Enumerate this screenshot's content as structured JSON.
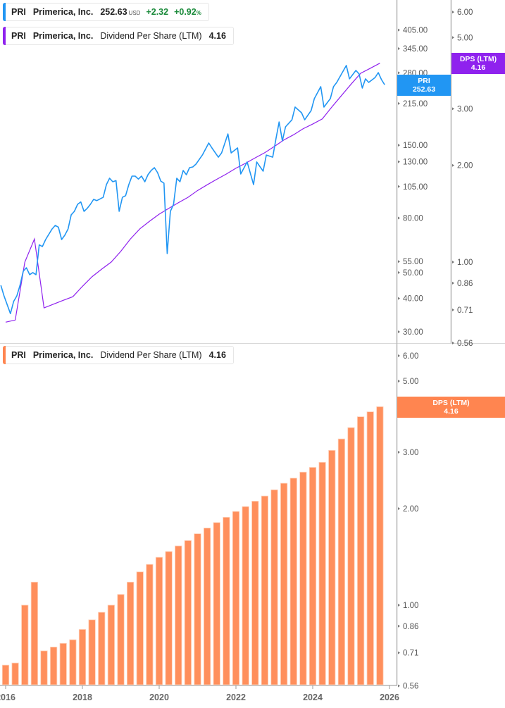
{
  "legends": {
    "price": {
      "ticker": "PRI",
      "name": "Primerica, Inc.",
      "value": "252.63",
      "unit": "USD",
      "change": "+2.32",
      "change_pct": "+0.92",
      "pct_sign": "%",
      "color": "#2196f3"
    },
    "dps_top": {
      "ticker": "PRI",
      "name": "Primerica, Inc.",
      "metric": "Dividend Per Share (LTM)",
      "value": "4.16",
      "color": "#8f22ee"
    },
    "dps_bottom": {
      "ticker": "PRI",
      "name": "Primerica, Inc.",
      "metric": "Dividend Per Share (LTM)",
      "value": "4.16",
      "color": "#ff8550"
    }
  },
  "tags": {
    "price": {
      "label": "PRI",
      "value": "252.63",
      "color": "#2196f3"
    },
    "dps_top": {
      "label": "DPS (LTM)",
      "value": "4.16",
      "color": "#8f22ee"
    },
    "dps_bottom": {
      "label": "DPS (LTM)",
      "value": "4.16",
      "color": "#ff8550"
    }
  },
  "chart_data": [
    {
      "type": "line",
      "y_scale": "log",
      "grid": false,
      "price_axis": {
        "ticks": [
          405,
          345,
          280,
          215,
          150,
          130,
          105,
          80,
          55,
          50,
          40,
          30
        ]
      },
      "dps_axis": {
        "ticks": [
          6.0,
          5.0,
          4.0,
          3.0,
          2.0,
          1.0,
          0.86,
          0.71,
          0.56
        ]
      },
      "series": [
        {
          "name": "PRI",
          "axis": "price",
          "color": "#2196f3",
          "points": [
            [
              "2015-11",
              44.8
            ],
            [
              "2015-12",
              40.9
            ],
            [
              "2016-02",
              35.1
            ],
            [
              "2016-03",
              39.0
            ],
            [
              "2016-04",
              40.9
            ],
            [
              "2016-05",
              44.8
            ],
            [
              "2016-06",
              50.6
            ],
            [
              "2016-07",
              52.1
            ],
            [
              "2016-08",
              49.1
            ],
            [
              "2016-09",
              50.0
            ],
            [
              "2016-10",
              49.1
            ],
            [
              "2016-11",
              63.5
            ],
            [
              "2016-12",
              62.6
            ],
            [
              "2017-01",
              66.5
            ],
            [
              "2017-03",
              72.8
            ],
            [
              "2017-04",
              75.1
            ],
            [
              "2017-05",
              74.0
            ],
            [
              "2017-06",
              66.5
            ],
            [
              "2017-07",
              69.0
            ],
            [
              "2017-08",
              72.8
            ],
            [
              "2017-09",
              82.3
            ],
            [
              "2017-10",
              84.8
            ],
            [
              "2017-11",
              90.1
            ],
            [
              "2017-12",
              92.0
            ],
            [
              "2018-01",
              84.8
            ],
            [
              "2018-02",
              87.0
            ],
            [
              "2018-03",
              90.1
            ],
            [
              "2018-04",
              94.0
            ],
            [
              "2018-05",
              93.0
            ],
            [
              "2018-07",
              95.7
            ],
            [
              "2018-08",
              106.8
            ],
            [
              "2018-09",
              112.8
            ],
            [
              "2018-10",
              109.4
            ],
            [
              "2018-11",
              110.5
            ],
            [
              "2018-12",
              84.8
            ],
            [
              "2019-01",
              95.7
            ],
            [
              "2019-02",
              97.0
            ],
            [
              "2019-03",
              106.8
            ],
            [
              "2019-04",
              114.9
            ],
            [
              "2019-05",
              114.9
            ],
            [
              "2019-06",
              112.0
            ],
            [
              "2019-07",
              114.9
            ],
            [
              "2019-08",
              109.4
            ],
            [
              "2019-09",
              116.3
            ],
            [
              "2019-10",
              120.6
            ],
            [
              "2019-11",
              123.6
            ],
            [
              "2019-12",
              118.4
            ],
            [
              "2020-01",
              110.0
            ],
            [
              "2020-02",
              108.1
            ],
            [
              "2020-03",
              58.9
            ],
            [
              "2020-04",
              84.8
            ],
            [
              "2020-05",
              90.1
            ],
            [
              "2020-06",
              112.8
            ],
            [
              "2020-07",
              109.4
            ],
            [
              "2020-08",
              120.6
            ],
            [
              "2020-09",
              116.3
            ],
            [
              "2020-10",
              123.6
            ],
            [
              "2020-11",
              124.3
            ],
            [
              "2020-12",
              127.4
            ],
            [
              "2021-02",
              137.8
            ],
            [
              "2021-04",
              152.8
            ],
            [
              "2021-05",
              146.5
            ],
            [
              "2021-07",
              135.3
            ],
            [
              "2021-08",
              140.3
            ],
            [
              "2021-10",
              165.3
            ],
            [
              "2021-11",
              140.3
            ],
            [
              "2022-01",
              146.5
            ],
            [
              "2022-02",
              117.0
            ],
            [
              "2022-04",
              129.8
            ],
            [
              "2022-06",
              106.8
            ],
            [
              "2022-07",
              129.8
            ],
            [
              "2022-09",
              119.9
            ],
            [
              "2022-10",
              137.8
            ],
            [
              "2022-12",
              135.3
            ],
            [
              "2023-01",
              158.5
            ],
            [
              "2023-02",
              183.3
            ],
            [
              "2023-03",
              155.7
            ],
            [
              "2023-04",
              175.8
            ],
            [
              "2023-06",
              186.7
            ],
            [
              "2023-07",
              208.4
            ],
            [
              "2023-09",
              198.5
            ],
            [
              "2023-10",
              186.7
            ],
            [
              "2023-12",
              202.1
            ],
            [
              "2024-01",
              224.1
            ],
            [
              "2024-03",
              248.5
            ],
            [
              "2024-04",
              208.4
            ],
            [
              "2024-06",
              224.1
            ],
            [
              "2024-07",
              248.5
            ],
            [
              "2024-08",
              257.8
            ],
            [
              "2024-11",
              298.3
            ],
            [
              "2024-12",
              265.8
            ],
            [
              "2025-02",
              285.7
            ],
            [
              "2025-03",
              277.2
            ],
            [
              "2025-04",
              245.5
            ],
            [
              "2025-05",
              265.8
            ],
            [
              "2025-06",
              257.8
            ],
            [
              "2025-08",
              269.0
            ],
            [
              "2025-09",
              280.5
            ],
            [
              "2025-10",
              264.1
            ],
            [
              "2025-11",
              252.63
            ]
          ]
        },
        {
          "name": "Dividend Per Share (LTM)",
          "axis": "dps",
          "color": "#8f22ee",
          "values": [
            0.65,
            0.66,
            1.0,
            1.18,
            0.72,
            0.74,
            0.76,
            0.78,
            0.84,
            0.9,
            0.95,
            1.0,
            1.08,
            1.18,
            1.27,
            1.34,
            1.41,
            1.47,
            1.53,
            1.59,
            1.67,
            1.74,
            1.81,
            1.88,
            1.96,
            2.03,
            2.11,
            2.19,
            2.29,
            2.4,
            2.49,
            2.6,
            2.69,
            2.79,
            3.04,
            3.3,
            3.58,
            3.87,
            4.01,
            4.16
          ]
        }
      ]
    },
    {
      "type": "bar",
      "y_scale": "log",
      "grid": false,
      "color": "#ff8f5c",
      "categories": [
        "2016 Q1",
        "2016 Q2",
        "2016 Q3",
        "2016 Q4",
        "2017 Q1",
        "2017 Q2",
        "2017 Q3",
        "2017 Q4",
        "2018 Q1",
        "2018 Q2",
        "2018 Q3",
        "2018 Q4",
        "2019 Q1",
        "2019 Q2",
        "2019 Q3",
        "2019 Q4",
        "2020 Q1",
        "2020 Q2",
        "2020 Q3",
        "2020 Q4",
        "2021 Q1",
        "2021 Q2",
        "2021 Q3",
        "2021 Q4",
        "2022 Q1",
        "2022 Q2",
        "2022 Q3",
        "2022 Q4",
        "2023 Q1",
        "2023 Q2",
        "2023 Q3",
        "2023 Q4",
        "2024 Q1",
        "2024 Q2",
        "2024 Q3",
        "2024 Q4",
        "2025 Q1",
        "2025 Q2",
        "2025 Q3",
        "2025 Q4"
      ],
      "values": [
        0.65,
        0.66,
        1.0,
        1.18,
        0.72,
        0.74,
        0.76,
        0.78,
        0.84,
        0.9,
        0.95,
        1.0,
        1.08,
        1.18,
        1.27,
        1.34,
        1.41,
        1.47,
        1.53,
        1.59,
        1.67,
        1.74,
        1.81,
        1.88,
        1.96,
        2.03,
        2.11,
        2.19,
        2.29,
        2.4,
        2.49,
        2.6,
        2.69,
        2.79,
        3.04,
        3.3,
        3.58,
        3.87,
        4.01,
        4.16
      ],
      "y_ticks": [
        6.0,
        5.0,
        4.0,
        3.0,
        2.0,
        1.0,
        0.86,
        0.71,
        0.56
      ],
      "x_ticks": [
        "2016",
        "2018",
        "2020",
        "2022",
        "2024",
        "2026"
      ]
    }
  ]
}
